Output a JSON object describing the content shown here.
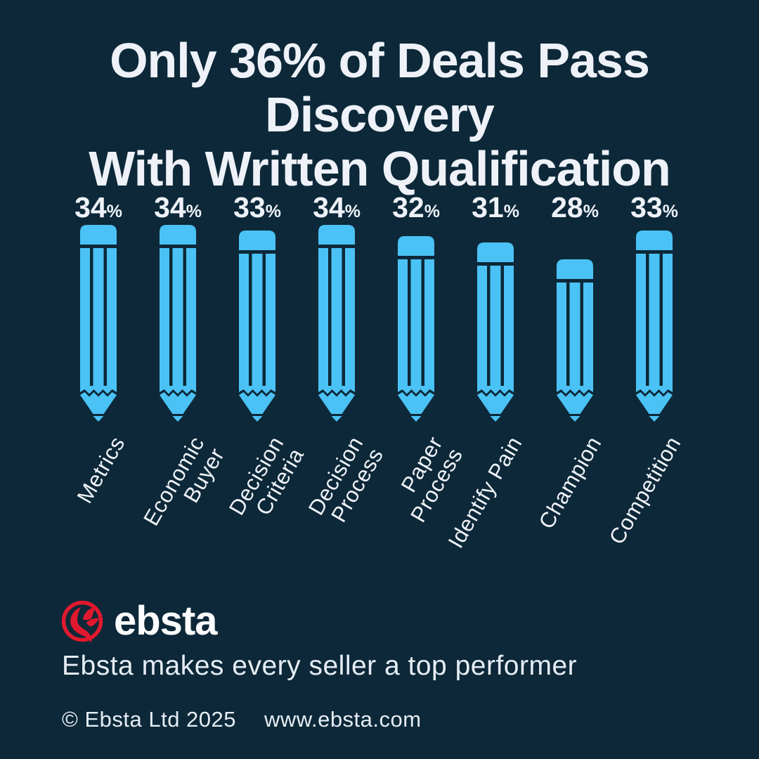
{
  "header": {
    "line1": "Only 36% of Deals Pass Discovery",
    "line2": "With Written Qualification"
  },
  "chart_data": {
    "type": "bar",
    "title": "Only 36% of Deals Pass Discovery With Written Qualification",
    "categories": [
      "Metrics",
      "Economic Buyer",
      "Decision Criteria",
      "Decision Process",
      "Paper Process",
      "Identify Pain",
      "Champion",
      "Competition"
    ],
    "display_labels": [
      "Metrics",
      "Economic\nBuyer",
      "Decision\nCriteria",
      "Decision\nProcess",
      "Paper\nProcess",
      "Identify Pain",
      "Champion",
      "Competition"
    ],
    "values": [
      34,
      34,
      33,
      34,
      32,
      31,
      28,
      33
    ],
    "unit": "%",
    "value_labels": [
      "34%",
      "34%",
      "33%",
      "34%",
      "32%",
      "31%",
      "28%",
      "33%"
    ],
    "bar_style": "pencil-icon-bars",
    "orientation": "vertical",
    "grid": false,
    "legend": false,
    "ylim": [
      0,
      34
    ],
    "xlabel": "",
    "ylabel": ""
  },
  "brand": {
    "logo_text": "ebsta",
    "logo_icon": "phoenix-in-ring-icon",
    "tagline": "Ebsta makes every seller a top performer"
  },
  "footer": {
    "copyright": "© Ebsta Ltd 2025",
    "website": "www.ebsta.com"
  },
  "colors": {
    "background": "#0D2838",
    "pencil_blue": "#4BC2F5",
    "text": "#EEF2F8",
    "text_secondary": "#E5EDF4",
    "logo_red": "#E0192E"
  }
}
